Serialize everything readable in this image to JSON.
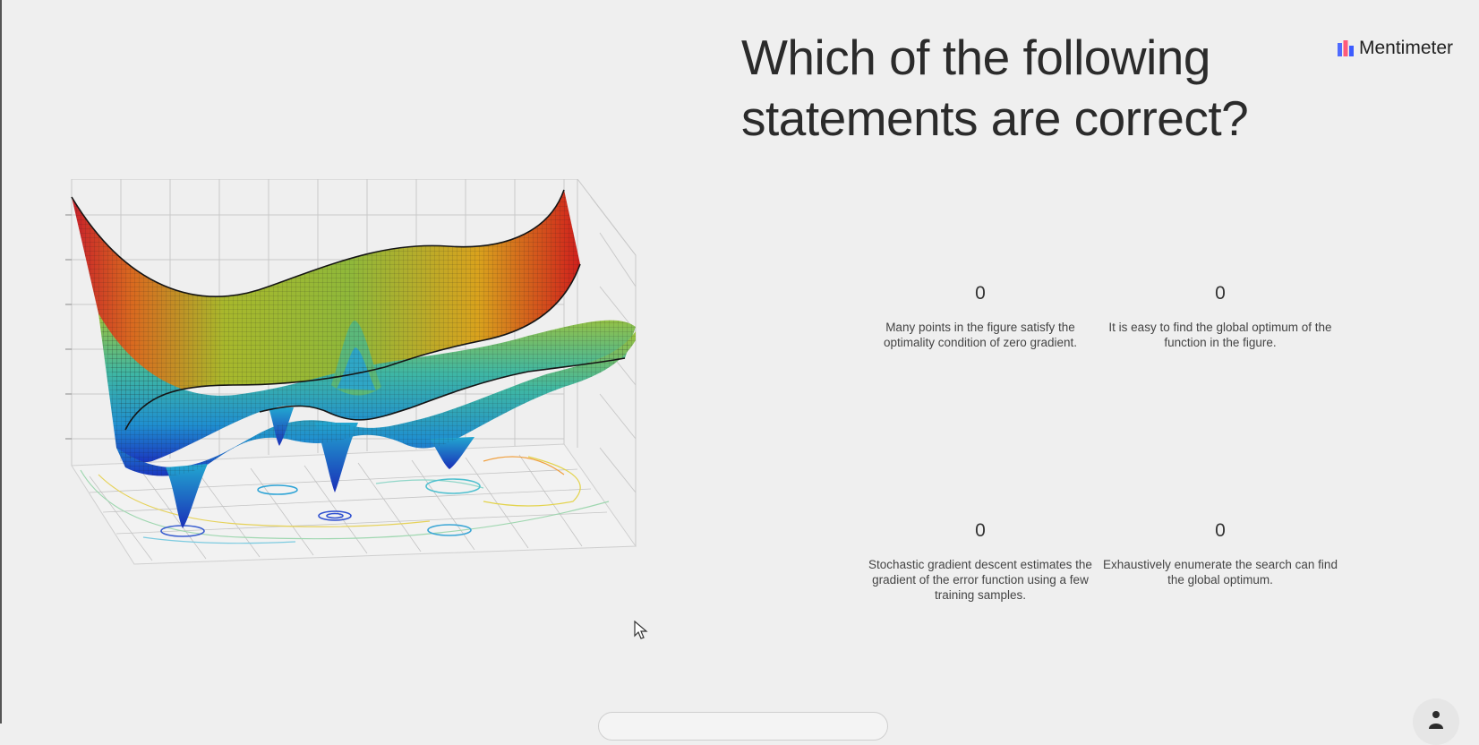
{
  "slide": {
    "title": "Which of the following statements are correct?",
    "brand": "Mentimeter"
  },
  "options": [
    {
      "count": "0",
      "label": "Many points in the figure satisfy the optimality condition of zero gradient."
    },
    {
      "count": "0",
      "label": "It is easy to find the global optimum of the function in the figure."
    },
    {
      "count": "0",
      "label": "Stochastic gradient descent estimates the gradient of the error function using a few training samples."
    },
    {
      "count": "0",
      "label": "Exhaustively enumerate the search can find the global optimum."
    }
  ],
  "colors": {
    "background": "#efefef",
    "text": "#2b2b2b",
    "surface_high": "#d7191c",
    "surface_low": "#1a3fc8"
  },
  "icons": {
    "brand": "mentimeter-logo-icon",
    "cursor": "mouse-pointer-icon",
    "user": "person-icon"
  }
}
